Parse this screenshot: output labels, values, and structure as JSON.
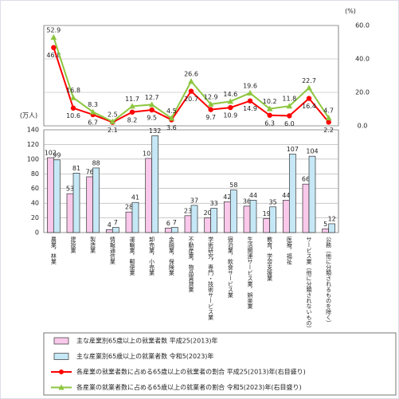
{
  "chart_data": {
    "type": "bar",
    "categories": [
      "農業，林業",
      "建設業",
      "製造業",
      "情報通信業",
      "運輸業，郵便業",
      "卸売業，小売業",
      "金融業，保険業",
      "不動産業，物品賃貸業",
      "学術研究，専門・技術サービス業",
      "宿泊業，飲食サービス業",
      "生活関連サービス業，娯楽業",
      "教育，学習支援業",
      "医療，福祉",
      "サービス業（他に分類されないもの）",
      "公務（他に分類されるものを除く）"
    ],
    "y_label": "(万人)",
    "y2_label": "(%)",
    "ylim": [
      0,
      140
    ],
    "yticks": [
      0,
      20,
      40,
      60,
      80,
      100,
      120,
      140
    ],
    "y2lim": [
      0,
      60
    ],
    "y2ticks": [
      {
        "value": 0,
        "label": "0.0"
      },
      {
        "value": 20,
        "label": "20.0"
      },
      {
        "value": 40,
        "label": "40.0"
      },
      {
        "value": 60,
        "label": "60.0"
      }
    ],
    "grid": true,
    "series": [
      {
        "name": "主な産業別65歳以上の就業者数 平成25(2013)年",
        "type": "bar",
        "color": "#f9c8ea",
        "values": [
          102,
          53,
          76,
          4,
          28,
          101,
          6,
          23,
          20,
          42,
          36,
          19,
          44,
          66,
          5
        ]
      },
      {
        "name": "主な産業別65歳以上の就業者数 令和5(2023)年",
        "type": "bar",
        "color": "#c6e8f6",
        "values": [
          99,
          81,
          88,
          7,
          41,
          132,
          7,
          37,
          33,
          58,
          44,
          35,
          107,
          104,
          12
        ]
      },
      {
        "name": "各産業の就業者数に占める65歳以上の就業者の割合 平成25(2013)年(右目盛り)",
        "type": "line",
        "axis": "y2",
        "color": "#ff0000",
        "values": [
          46.8,
          10.6,
          6.7,
          2.1,
          8.2,
          9.5,
          3.6,
          20.7,
          9.7,
          10.9,
          14.9,
          6.3,
          6.0,
          16.4,
          2.2
        ],
        "value_labels": [
          "46.8",
          "10.6",
          "6.7",
          "2.1",
          "8.2",
          "9.5",
          "3.6",
          "20.7",
          "9.7",
          "10.9",
          "14.9",
          "6.3",
          "6.0",
          "16.4",
          "2.2"
        ]
      },
      {
        "name": "各産業の就業者数に占める65歳以上の就業者の割合 令和5(2023)年(右目盛り)",
        "type": "line",
        "axis": "y2",
        "color": "#8dc63f",
        "values": [
          52.9,
          16.8,
          8.3,
          2.5,
          11.7,
          12.7,
          4.5,
          26.6,
          12.9,
          14.6,
          19.6,
          10.2,
          11.8,
          22.7,
          4.7
        ],
        "value_labels": [
          "52.9",
          "16.8",
          "8.3",
          "2.5",
          "11.7",
          "12.7",
          "4.5",
          "26.6",
          "12.9",
          "14.6",
          "19.6",
          "10.2",
          "11.8",
          "22.7",
          "4.7"
        ]
      }
    ]
  }
}
